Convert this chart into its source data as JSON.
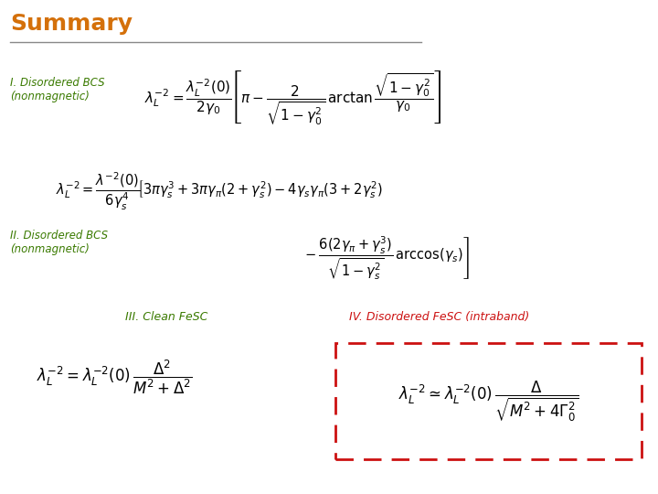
{
  "title": "Summary",
  "title_color": "#D4700A",
  "title_fontsize": 18,
  "bg_color": "#ffffff",
  "label_color_green": "#3A7A00",
  "label_color_red": "#CC1111",
  "line_color": "#888888",
  "eq1_label": "I. Disordered BCS\n(nonmagnetic)",
  "eq2_label": "II. Disordered BCS\n(nonmagnetic)",
  "eq3_label": "III. Clean FeSC",
  "eq4_label": "IV. Disordered FeSC (intraband)",
  "box_color": "#CC1111",
  "fig_w": 7.2,
  "fig_h": 5.4,
  "dpi": 100
}
